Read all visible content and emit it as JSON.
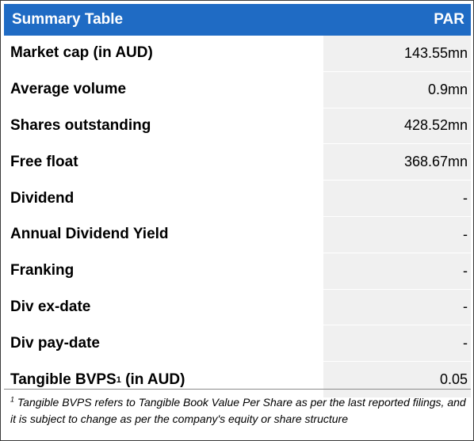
{
  "header": {
    "title": "Summary Table",
    "ticker": "PAR"
  },
  "rows": [
    {
      "label": "Market cap (in AUD)",
      "value": "143.55mn"
    },
    {
      "label": "Average volume",
      "value": "0.9mn"
    },
    {
      "label": "Shares outstanding",
      "value": "428.52mn"
    },
    {
      "label": "Free float",
      "value": "368.67mn"
    },
    {
      "label": "Dividend",
      "value": "-"
    },
    {
      "label": "Annual Dividend Yield",
      "value": "-"
    },
    {
      "label": "Franking",
      "value": "-"
    },
    {
      "label": "Div ex-date",
      "value": "-"
    },
    {
      "label": "Div pay-date",
      "value": "-"
    },
    {
      "label_main": "Tangible BVPS",
      "label_sup": "1",
      "label_suffix": " (in AUD)",
      "value": "0.05"
    }
  ],
  "footnote": {
    "marker": "1",
    "text": " Tangible BVPS refers to Tangible Book Value Per Share as per the last reported filings, and it is subject to change as per the company's equity or share structure"
  }
}
